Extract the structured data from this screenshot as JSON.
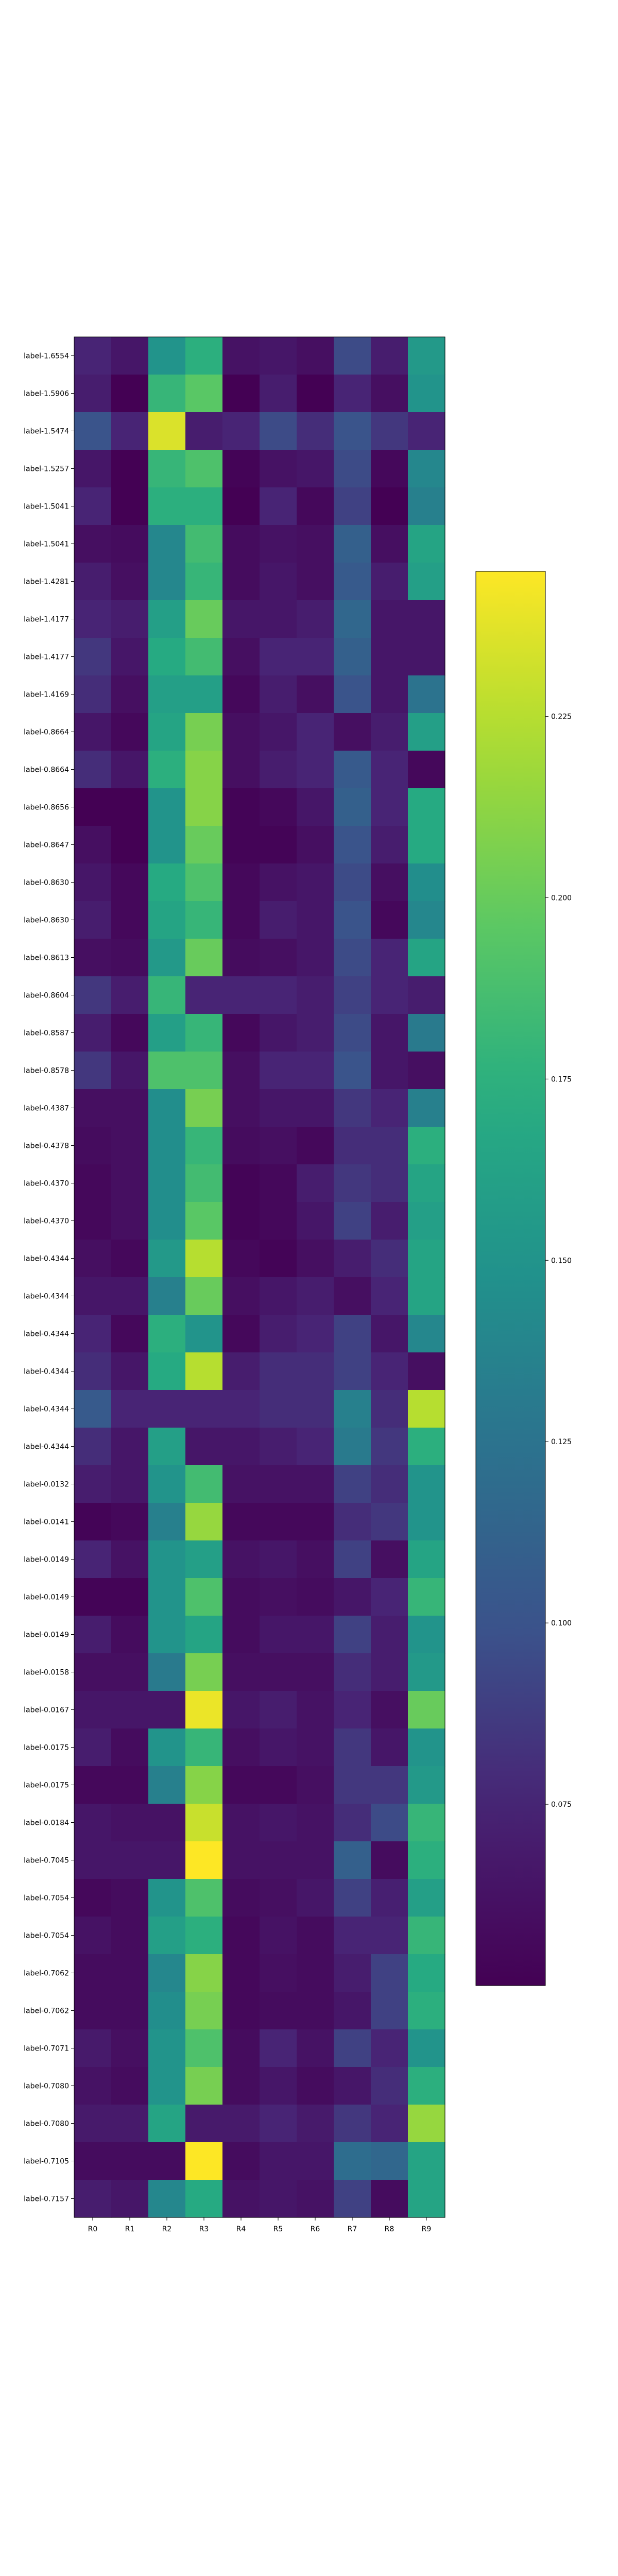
{
  "chart_data": {
    "type": "heatmap",
    "title": "",
    "xlabel": "",
    "ylabel": "",
    "colormap": "viridis",
    "vmin": 0.05,
    "vmax": 0.245,
    "colorbar_ticks": [
      "0.075",
      "0.100",
      "0.125",
      "0.150",
      "0.175",
      "0.200",
      "0.225"
    ],
    "colorbar_tick_values": [
      0.075,
      0.1,
      0.125,
      0.15,
      0.175,
      0.2,
      0.225
    ],
    "columns": [
      "R0",
      "R1",
      "R2",
      "R3",
      "R4",
      "R5",
      "R6",
      "R7",
      "R8",
      "R9"
    ],
    "rows": [
      "label-1.6554",
      "label-1.5906",
      "label-1.5474",
      "label-1.5257",
      "label-1.5041",
      "label-1.5041",
      "label-1.4281",
      "label-1.4177",
      "label-1.4177",
      "label-1.4169",
      "label-0.8664",
      "label-0.8664",
      "label-0.8656",
      "label-0.8647",
      "label-0.8630",
      "label-0.8630",
      "label-0.8613",
      "label-0.8604",
      "label-0.8587",
      "label-0.8578",
      "label-0.4387",
      "label-0.4378",
      "label-0.4370",
      "label-0.4370",
      "label-0.4344",
      "label-0.4344",
      "label-0.4344",
      "label-0.4344",
      "label-0.4344",
      "label-0.4344",
      "label-0.0132",
      "label-0.0141",
      "label-0.0149",
      "label-0.0149",
      "label-0.0149",
      "label-0.0158",
      "label-0.0167",
      "label-0.0175",
      "label-0.0175",
      "label-0.0184",
      "label-0.7045",
      "label-0.7054",
      "label-0.7054",
      "label-0.7062",
      "label-0.7062",
      "label-0.7071",
      "label-0.7080",
      "label-0.7080",
      "label-0.7105",
      "label-0.7157"
    ],
    "values": [
      [
        0.075,
        0.065,
        0.15,
        0.175,
        0.062,
        0.065,
        0.06,
        0.095,
        0.07,
        0.155
      ],
      [
        0.07,
        0.05,
        0.18,
        0.195,
        0.05,
        0.07,
        0.05,
        0.075,
        0.06,
        0.15
      ],
      [
        0.1,
        0.075,
        0.235,
        0.07,
        0.075,
        0.095,
        0.08,
        0.1,
        0.085,
        0.075
      ],
      [
        0.065,
        0.05,
        0.18,
        0.19,
        0.052,
        0.062,
        0.065,
        0.095,
        0.055,
        0.14
      ],
      [
        0.075,
        0.05,
        0.175,
        0.175,
        0.05,
        0.075,
        0.055,
        0.09,
        0.05,
        0.135
      ],
      [
        0.06,
        0.058,
        0.14,
        0.185,
        0.058,
        0.062,
        0.06,
        0.11,
        0.06,
        0.165
      ],
      [
        0.07,
        0.06,
        0.14,
        0.18,
        0.058,
        0.065,
        0.06,
        0.105,
        0.07,
        0.16
      ],
      [
        0.075,
        0.07,
        0.16,
        0.2,
        0.065,
        0.065,
        0.07,
        0.115,
        0.065,
        0.065
      ],
      [
        0.085,
        0.065,
        0.17,
        0.185,
        0.06,
        0.075,
        0.075,
        0.11,
        0.065,
        0.065
      ],
      [
        0.08,
        0.06,
        0.16,
        0.16,
        0.055,
        0.07,
        0.06,
        0.1,
        0.065,
        0.125
      ],
      [
        0.065,
        0.055,
        0.165,
        0.205,
        0.06,
        0.065,
        0.075,
        0.06,
        0.07,
        0.16
      ],
      [
        0.08,
        0.065,
        0.175,
        0.21,
        0.06,
        0.07,
        0.075,
        0.105,
        0.075,
        0.055
      ],
      [
        0.05,
        0.05,
        0.15,
        0.21,
        0.052,
        0.055,
        0.065,
        0.11,
        0.075,
        0.17
      ],
      [
        0.06,
        0.05,
        0.15,
        0.2,
        0.052,
        0.052,
        0.06,
        0.1,
        0.07,
        0.17
      ],
      [
        0.065,
        0.055,
        0.17,
        0.19,
        0.055,
        0.062,
        0.065,
        0.095,
        0.06,
        0.145
      ],
      [
        0.07,
        0.055,
        0.165,
        0.18,
        0.055,
        0.07,
        0.065,
        0.1,
        0.055,
        0.14
      ],
      [
        0.06,
        0.058,
        0.155,
        0.2,
        0.058,
        0.06,
        0.065,
        0.095,
        0.075,
        0.165
      ],
      [
        0.085,
        0.07,
        0.18,
        0.075,
        0.075,
        0.075,
        0.07,
        0.09,
        0.075,
        0.07
      ],
      [
        0.07,
        0.055,
        0.16,
        0.18,
        0.055,
        0.065,
        0.07,
        0.095,
        0.065,
        0.13
      ],
      [
        0.085,
        0.065,
        0.19,
        0.19,
        0.06,
        0.075,
        0.075,
        0.1,
        0.065,
        0.06
      ],
      [
        0.06,
        0.06,
        0.145,
        0.205,
        0.06,
        0.065,
        0.065,
        0.085,
        0.075,
        0.135
      ],
      [
        0.058,
        0.06,
        0.145,
        0.18,
        0.058,
        0.06,
        0.055,
        0.08,
        0.08,
        0.175
      ],
      [
        0.055,
        0.06,
        0.145,
        0.185,
        0.052,
        0.055,
        0.07,
        0.085,
        0.08,
        0.165
      ],
      [
        0.055,
        0.06,
        0.145,
        0.195,
        0.052,
        0.055,
        0.065,
        0.09,
        0.07,
        0.16
      ],
      [
        0.06,
        0.055,
        0.155,
        0.225,
        0.055,
        0.052,
        0.06,
        0.07,
        0.08,
        0.165
      ],
      [
        0.065,
        0.065,
        0.135,
        0.2,
        0.06,
        0.065,
        0.07,
        0.06,
        0.075,
        0.165
      ],
      [
        0.075,
        0.055,
        0.175,
        0.15,
        0.055,
        0.07,
        0.075,
        0.09,
        0.065,
        0.14
      ],
      [
        0.08,
        0.065,
        0.17,
        0.225,
        0.07,
        0.08,
        0.08,
        0.09,
        0.075,
        0.06
      ],
      [
        0.105,
        0.075,
        0.075,
        0.075,
        0.075,
        0.08,
        0.08,
        0.135,
        0.08,
        0.225
      ],
      [
        0.08,
        0.065,
        0.16,
        0.065,
        0.065,
        0.07,
        0.075,
        0.13,
        0.085,
        0.175
      ],
      [
        0.07,
        0.065,
        0.15,
        0.185,
        0.062,
        0.062,
        0.062,
        0.09,
        0.08,
        0.15
      ],
      [
        0.052,
        0.055,
        0.135,
        0.215,
        0.055,
        0.055,
        0.055,
        0.08,
        0.085,
        0.15
      ],
      [
        0.075,
        0.062,
        0.15,
        0.16,
        0.062,
        0.065,
        0.06,
        0.09,
        0.06,
        0.165
      ],
      [
        0.052,
        0.052,
        0.15,
        0.19,
        0.058,
        0.06,
        0.058,
        0.065,
        0.075,
        0.18
      ],
      [
        0.07,
        0.058,
        0.15,
        0.165,
        0.058,
        0.065,
        0.065,
        0.09,
        0.07,
        0.15
      ],
      [
        0.06,
        0.06,
        0.13,
        0.205,
        0.06,
        0.06,
        0.06,
        0.08,
        0.07,
        0.155
      ],
      [
        0.065,
        0.065,
        0.065,
        0.24,
        0.065,
        0.07,
        0.062,
        0.075,
        0.06,
        0.2
      ],
      [
        0.07,
        0.058,
        0.15,
        0.18,
        0.06,
        0.065,
        0.062,
        0.085,
        0.065,
        0.15
      ],
      [
        0.055,
        0.055,
        0.135,
        0.21,
        0.055,
        0.055,
        0.06,
        0.085,
        0.085,
        0.155
      ],
      [
        0.065,
        0.062,
        0.062,
        0.23,
        0.062,
        0.065,
        0.062,
        0.08,
        0.095,
        0.18
      ],
      [
        0.065,
        0.065,
        0.065,
        0.245,
        0.062,
        0.062,
        0.062,
        0.11,
        0.058,
        0.175
      ],
      [
        0.055,
        0.058,
        0.15,
        0.19,
        0.058,
        0.06,
        0.065,
        0.09,
        0.072,
        0.16
      ],
      [
        0.062,
        0.058,
        0.16,
        0.175,
        0.055,
        0.062,
        0.058,
        0.075,
        0.075,
        0.18
      ],
      [
        0.058,
        0.058,
        0.14,
        0.21,
        0.055,
        0.06,
        0.058,
        0.07,
        0.09,
        0.17
      ],
      [
        0.058,
        0.058,
        0.145,
        0.205,
        0.055,
        0.058,
        0.058,
        0.065,
        0.09,
        0.175
      ],
      [
        0.068,
        0.06,
        0.15,
        0.19,
        0.058,
        0.075,
        0.062,
        0.09,
        0.075,
        0.15
      ],
      [
        0.062,
        0.058,
        0.15,
        0.205,
        0.058,
        0.065,
        0.058,
        0.065,
        0.08,
        0.175
      ],
      [
        0.068,
        0.068,
        0.165,
        0.068,
        0.068,
        0.075,
        0.068,
        0.085,
        0.075,
        0.215
      ],
      [
        0.058,
        0.058,
        0.058,
        0.245,
        0.058,
        0.065,
        0.065,
        0.12,
        0.115,
        0.165
      ],
      [
        0.07,
        0.065,
        0.14,
        0.17,
        0.062,
        0.065,
        0.062,
        0.09,
        0.058,
        0.165
      ]
    ]
  }
}
